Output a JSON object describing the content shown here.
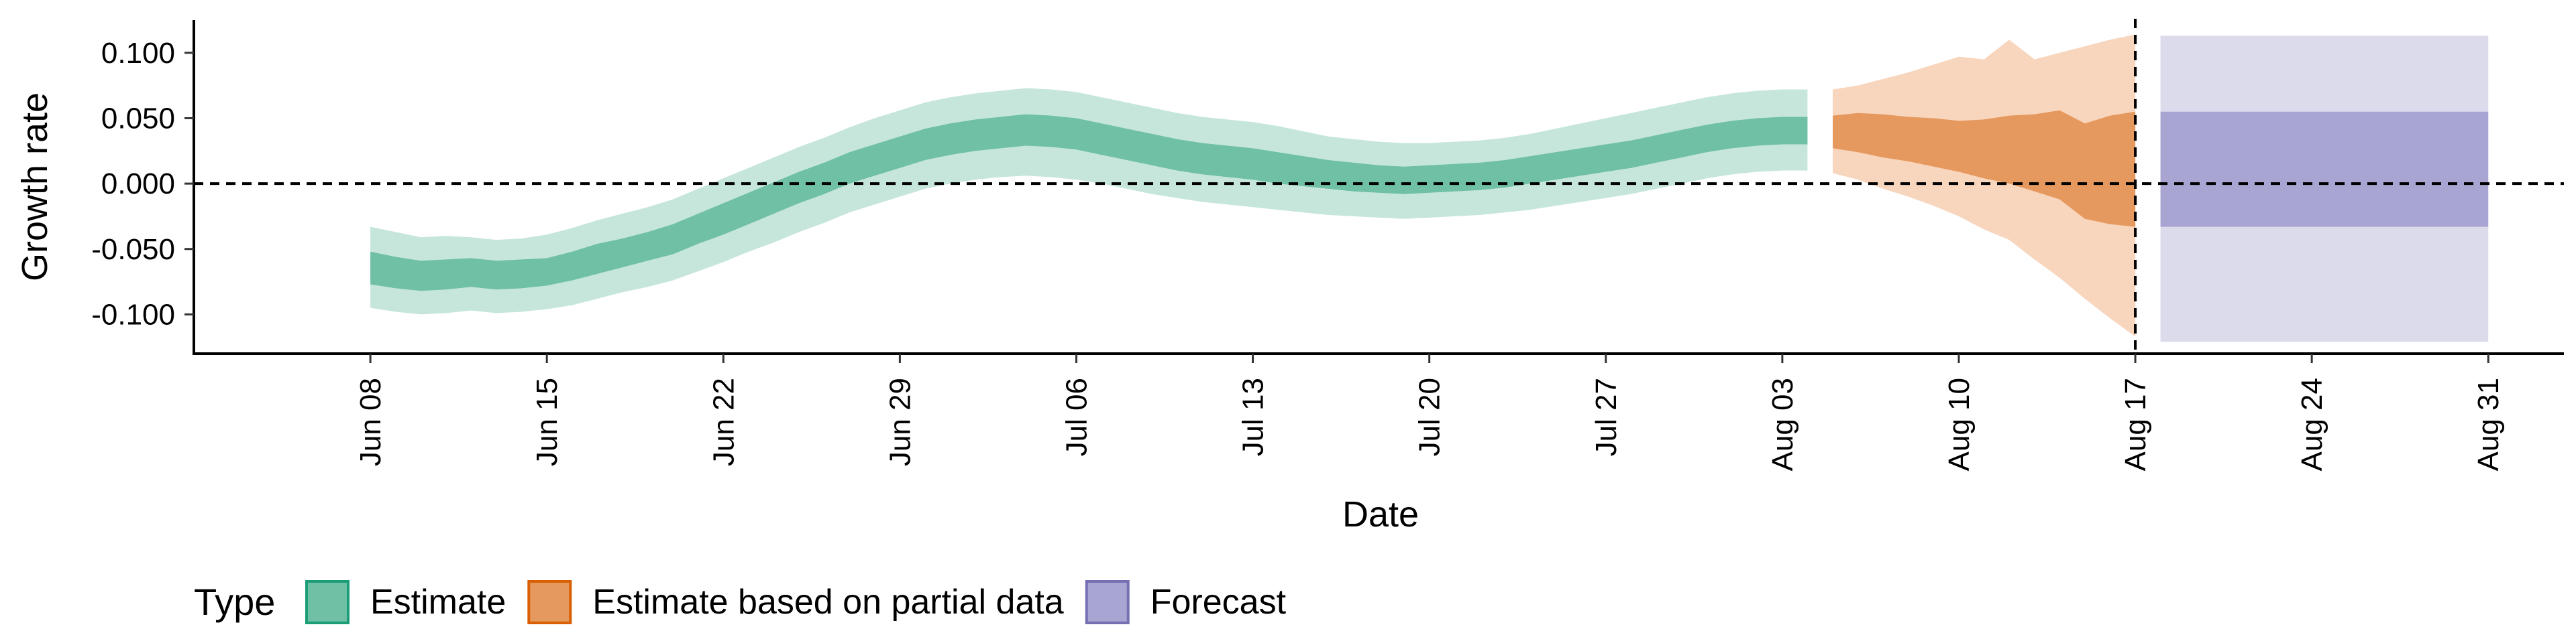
{
  "chart_data": {
    "type": "area",
    "xlabel": "Date",
    "ylabel": "Growth rate",
    "ylim": [
      -0.13,
      0.125
    ],
    "x_range": [
      "2020-06-01",
      "2020-09-03"
    ],
    "yticks": [
      {
        "value": 0.1,
        "label": "0.100"
      },
      {
        "value": 0.05,
        "label": "0.050"
      },
      {
        "value": 0.0,
        "label": "0.000"
      },
      {
        "value": -0.05,
        "label": "-0.050"
      },
      {
        "value": -0.1,
        "label": "-0.100"
      }
    ],
    "xticks": [
      {
        "date": "2020-06-08",
        "label": "Jun 08"
      },
      {
        "date": "2020-06-15",
        "label": "Jun 15"
      },
      {
        "date": "2020-06-22",
        "label": "Jun 22"
      },
      {
        "date": "2020-06-29",
        "label": "Jun 29"
      },
      {
        "date": "2020-07-06",
        "label": "Jul 06"
      },
      {
        "date": "2020-07-13",
        "label": "Jul 13"
      },
      {
        "date": "2020-07-20",
        "label": "Jul 20"
      },
      {
        "date": "2020-07-27",
        "label": "Jul 27"
      },
      {
        "date": "2020-08-03",
        "label": "Aug 03"
      },
      {
        "date": "2020-08-10",
        "label": "Aug 10"
      },
      {
        "date": "2020-08-17",
        "label": "Aug 17"
      },
      {
        "date": "2020-08-24",
        "label": "Aug 24"
      },
      {
        "date": "2020-08-31",
        "label": "Aug 31"
      }
    ],
    "grid": false,
    "reference_lines": [
      {
        "orientation": "horizontal",
        "value": 0.0,
        "style": "dashed"
      },
      {
        "orientation": "vertical",
        "date": "2020-08-17",
        "style": "dashed"
      }
    ],
    "legend": {
      "title": "Type",
      "position": "bottom-left"
    },
    "series": [
      {
        "name": "Estimate",
        "color": "#66c2a5",
        "inner_color": "#6fc0a4",
        "outer_color": "#c6e6dc",
        "points": [
          {
            "date": "2020-06-08",
            "o_lo": -0.095,
            "i_lo": -0.077,
            "i_hi": -0.052,
            "o_hi": -0.033
          },
          {
            "date": "2020-06-09",
            "o_lo": -0.098,
            "i_lo": -0.08,
            "i_hi": -0.056,
            "o_hi": -0.037
          },
          {
            "date": "2020-06-10",
            "o_lo": -0.1,
            "i_lo": -0.082,
            "i_hi": -0.059,
            "o_hi": -0.041
          },
          {
            "date": "2020-06-11",
            "o_lo": -0.099,
            "i_lo": -0.081,
            "i_hi": -0.058,
            "o_hi": -0.04
          },
          {
            "date": "2020-06-12",
            "o_lo": -0.097,
            "i_lo": -0.079,
            "i_hi": -0.057,
            "o_hi": -0.041
          },
          {
            "date": "2020-06-13",
            "o_lo": -0.099,
            "i_lo": -0.081,
            "i_hi": -0.059,
            "o_hi": -0.043
          },
          {
            "date": "2020-06-14",
            "o_lo": -0.098,
            "i_lo": -0.08,
            "i_hi": -0.058,
            "o_hi": -0.042
          },
          {
            "date": "2020-06-15",
            "o_lo": -0.096,
            "i_lo": -0.078,
            "i_hi": -0.057,
            "o_hi": -0.039
          },
          {
            "date": "2020-06-16",
            "o_lo": -0.093,
            "i_lo": -0.074,
            "i_hi": -0.052,
            "o_hi": -0.034
          },
          {
            "date": "2020-06-17",
            "o_lo": -0.088,
            "i_lo": -0.069,
            "i_hi": -0.046,
            "o_hi": -0.028
          },
          {
            "date": "2020-06-18",
            "o_lo": -0.083,
            "i_lo": -0.064,
            "i_hi": -0.042,
            "o_hi": -0.023
          },
          {
            "date": "2020-06-19",
            "o_lo": -0.079,
            "i_lo": -0.059,
            "i_hi": -0.037,
            "o_hi": -0.018
          },
          {
            "date": "2020-06-20",
            "o_lo": -0.074,
            "i_lo": -0.054,
            "i_hi": -0.031,
            "o_hi": -0.012
          },
          {
            "date": "2020-06-21",
            "o_lo": -0.067,
            "i_lo": -0.046,
            "i_hi": -0.023,
            "o_hi": -0.004
          },
          {
            "date": "2020-06-22",
            "o_lo": -0.06,
            "i_lo": -0.039,
            "i_hi": -0.015,
            "o_hi": 0.004
          },
          {
            "date": "2020-06-23",
            "o_lo": -0.052,
            "i_lo": -0.031,
            "i_hi": -0.007,
            "o_hi": 0.012
          },
          {
            "date": "2020-06-24",
            "o_lo": -0.045,
            "i_lo": -0.023,
            "i_hi": 0.001,
            "o_hi": 0.02
          },
          {
            "date": "2020-06-25",
            "o_lo": -0.037,
            "i_lo": -0.015,
            "i_hi": 0.009,
            "o_hi": 0.028
          },
          {
            "date": "2020-06-26",
            "o_lo": -0.03,
            "i_lo": -0.008,
            "i_hi": 0.016,
            "o_hi": 0.035
          },
          {
            "date": "2020-06-27",
            "o_lo": -0.022,
            "i_lo": 0.0,
            "i_hi": 0.024,
            "o_hi": 0.043
          },
          {
            "date": "2020-06-28",
            "o_lo": -0.016,
            "i_lo": 0.006,
            "i_hi": 0.03,
            "o_hi": 0.05
          },
          {
            "date": "2020-06-29",
            "o_lo": -0.01,
            "i_lo": 0.012,
            "i_hi": 0.036,
            "o_hi": 0.056
          },
          {
            "date": "2020-06-30",
            "o_lo": -0.004,
            "i_lo": 0.018,
            "i_hi": 0.042,
            "o_hi": 0.062
          },
          {
            "date": "2020-07-01",
            "o_lo": 0.0,
            "i_lo": 0.022,
            "i_hi": 0.046,
            "o_hi": 0.066
          },
          {
            "date": "2020-07-02",
            "o_lo": 0.003,
            "i_lo": 0.025,
            "i_hi": 0.049,
            "o_hi": 0.069
          },
          {
            "date": "2020-07-03",
            "o_lo": 0.005,
            "i_lo": 0.027,
            "i_hi": 0.051,
            "o_hi": 0.071
          },
          {
            "date": "2020-07-04",
            "o_lo": 0.006,
            "i_lo": 0.029,
            "i_hi": 0.053,
            "o_hi": 0.073
          },
          {
            "date": "2020-07-05",
            "o_lo": 0.005,
            "i_lo": 0.028,
            "i_hi": 0.052,
            "o_hi": 0.072
          },
          {
            "date": "2020-07-06",
            "o_lo": 0.003,
            "i_lo": 0.026,
            "i_hi": 0.05,
            "o_hi": 0.07
          },
          {
            "date": "2020-07-07",
            "o_lo": 0.0,
            "i_lo": 0.022,
            "i_hi": 0.046,
            "o_hi": 0.066
          },
          {
            "date": "2020-07-08",
            "o_lo": -0.004,
            "i_lo": 0.018,
            "i_hi": 0.042,
            "o_hi": 0.062
          },
          {
            "date": "2020-07-09",
            "o_lo": -0.008,
            "i_lo": 0.014,
            "i_hi": 0.038,
            "o_hi": 0.058
          },
          {
            "date": "2020-07-10",
            "o_lo": -0.011,
            "i_lo": 0.01,
            "i_hi": 0.034,
            "o_hi": 0.054
          },
          {
            "date": "2020-07-11",
            "o_lo": -0.014,
            "i_lo": 0.007,
            "i_hi": 0.031,
            "o_hi": 0.051
          },
          {
            "date": "2020-07-12",
            "o_lo": -0.016,
            "i_lo": 0.005,
            "i_hi": 0.029,
            "o_hi": 0.049
          },
          {
            "date": "2020-07-13",
            "o_lo": -0.018,
            "i_lo": 0.003,
            "i_hi": 0.027,
            "o_hi": 0.047
          },
          {
            "date": "2020-07-14",
            "o_lo": -0.02,
            "i_lo": 0.0,
            "i_hi": 0.024,
            "o_hi": 0.044
          },
          {
            "date": "2020-07-15",
            "o_lo": -0.022,
            "i_lo": -0.002,
            "i_hi": 0.021,
            "o_hi": 0.04
          },
          {
            "date": "2020-07-16",
            "o_lo": -0.024,
            "i_lo": -0.004,
            "i_hi": 0.018,
            "o_hi": 0.036
          },
          {
            "date": "2020-07-17",
            "o_lo": -0.025,
            "i_lo": -0.006,
            "i_hi": 0.016,
            "o_hi": 0.034
          },
          {
            "date": "2020-07-18",
            "o_lo": -0.026,
            "i_lo": -0.007,
            "i_hi": 0.014,
            "o_hi": 0.032
          },
          {
            "date": "2020-07-19",
            "o_lo": -0.027,
            "i_lo": -0.008,
            "i_hi": 0.013,
            "o_hi": 0.031
          },
          {
            "date": "2020-07-20",
            "o_lo": -0.026,
            "i_lo": -0.007,
            "i_hi": 0.014,
            "o_hi": 0.031
          },
          {
            "date": "2020-07-21",
            "o_lo": -0.025,
            "i_lo": -0.006,
            "i_hi": 0.015,
            "o_hi": 0.032
          },
          {
            "date": "2020-07-22",
            "o_lo": -0.024,
            "i_lo": -0.005,
            "i_hi": 0.016,
            "o_hi": 0.033
          },
          {
            "date": "2020-07-23",
            "o_lo": -0.022,
            "i_lo": -0.003,
            "i_hi": 0.018,
            "o_hi": 0.035
          },
          {
            "date": "2020-07-24",
            "o_lo": -0.02,
            "i_lo": 0.0,
            "i_hi": 0.021,
            "o_hi": 0.038
          },
          {
            "date": "2020-07-25",
            "o_lo": -0.017,
            "i_lo": 0.003,
            "i_hi": 0.024,
            "o_hi": 0.042
          },
          {
            "date": "2020-07-26",
            "o_lo": -0.014,
            "i_lo": 0.006,
            "i_hi": 0.027,
            "o_hi": 0.046
          },
          {
            "date": "2020-07-27",
            "o_lo": -0.011,
            "i_lo": 0.009,
            "i_hi": 0.03,
            "o_hi": 0.05
          },
          {
            "date": "2020-07-28",
            "o_lo": -0.008,
            "i_lo": 0.012,
            "i_hi": 0.033,
            "o_hi": 0.054
          },
          {
            "date": "2020-07-29",
            "o_lo": -0.004,
            "i_lo": 0.016,
            "i_hi": 0.037,
            "o_hi": 0.058
          },
          {
            "date": "2020-07-30",
            "o_lo": 0.0,
            "i_lo": 0.02,
            "i_hi": 0.041,
            "o_hi": 0.062
          },
          {
            "date": "2020-07-31",
            "o_lo": 0.004,
            "i_lo": 0.024,
            "i_hi": 0.045,
            "o_hi": 0.066
          },
          {
            "date": "2020-08-01",
            "o_lo": 0.007,
            "i_lo": 0.027,
            "i_hi": 0.048,
            "o_hi": 0.069
          },
          {
            "date": "2020-08-02",
            "o_lo": 0.009,
            "i_lo": 0.029,
            "i_hi": 0.05,
            "o_hi": 0.071
          },
          {
            "date": "2020-08-03",
            "o_lo": 0.01,
            "i_lo": 0.03,
            "i_hi": 0.051,
            "o_hi": 0.072
          },
          {
            "date": "2020-08-04",
            "o_lo": 0.01,
            "i_lo": 0.03,
            "i_hi": 0.051,
            "o_hi": 0.072
          }
        ]
      },
      {
        "name": "Estimate based on partial data",
        "color": "#fc8d62",
        "inner_color": "#e6995e",
        "outer_color": "#f8d5bd",
        "points": [
          {
            "date": "2020-08-05",
            "o_lo": 0.008,
            "i_lo": 0.027,
            "i_hi": 0.052,
            "o_hi": 0.072
          },
          {
            "date": "2020-08-06",
            "o_lo": 0.003,
            "i_lo": 0.024,
            "i_hi": 0.054,
            "o_hi": 0.075
          },
          {
            "date": "2020-08-07",
            "o_lo": -0.004,
            "i_lo": 0.02,
            "i_hi": 0.053,
            "o_hi": 0.08
          },
          {
            "date": "2020-08-08",
            "o_lo": -0.01,
            "i_lo": 0.017,
            "i_hi": 0.051,
            "o_hi": 0.085
          },
          {
            "date": "2020-08-09",
            "o_lo": -0.017,
            "i_lo": 0.013,
            "i_hi": 0.05,
            "o_hi": 0.091
          },
          {
            "date": "2020-08-10",
            "o_lo": -0.025,
            "i_lo": 0.009,
            "i_hi": 0.048,
            "o_hi": 0.097
          },
          {
            "date": "2020-08-11",
            "o_lo": -0.035,
            "i_lo": 0.004,
            "i_hi": 0.049,
            "o_hi": 0.095
          },
          {
            "date": "2020-08-12",
            "o_lo": -0.043,
            "i_lo": 0.0,
            "i_hi": 0.052,
            "o_hi": 0.11
          },
          {
            "date": "2020-08-13",
            "o_lo": -0.058,
            "i_lo": -0.006,
            "i_hi": 0.053,
            "o_hi": 0.095
          },
          {
            "date": "2020-08-14",
            "o_lo": -0.072,
            "i_lo": -0.012,
            "i_hi": 0.056,
            "o_hi": 0.1
          },
          {
            "date": "2020-08-15",
            "o_lo": -0.088,
            "i_lo": -0.027,
            "i_hi": 0.046,
            "o_hi": 0.105
          },
          {
            "date": "2020-08-16",
            "o_lo": -0.103,
            "i_lo": -0.031,
            "i_hi": 0.052,
            "o_hi": 0.11
          },
          {
            "date": "2020-08-17",
            "o_lo": -0.117,
            "i_lo": -0.033,
            "i_hi": 0.055,
            "o_hi": 0.114
          }
        ]
      },
      {
        "name": "Forecast",
        "color": "#8da0cb",
        "inner_color": "#a8a5d3",
        "outer_color": "#dcdbec",
        "points": [
          {
            "date": "2020-08-18",
            "o_lo": -0.121,
            "i_lo": -0.033,
            "i_hi": 0.055,
            "o_hi": 0.113
          },
          {
            "date": "2020-08-31",
            "o_lo": -0.121,
            "i_lo": -0.033,
            "i_hi": 0.055,
            "o_hi": 0.113
          }
        ]
      }
    ]
  }
}
